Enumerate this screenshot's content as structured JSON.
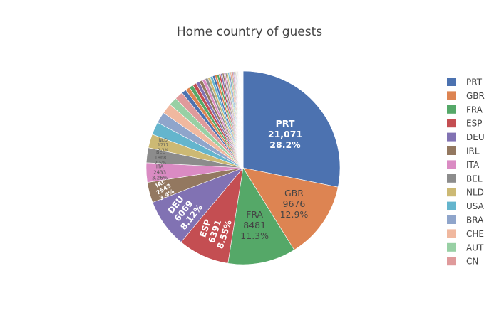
{
  "chart_data": {
    "type": "pie",
    "title": "Home country of guests",
    "categories": [
      "PRT",
      "GBR",
      "FRA",
      "ESP",
      "DEU",
      "IRL",
      "ITA",
      "BEL",
      "NLD",
      "USA",
      "BRA",
      "CHE",
      "AUT",
      "CN"
    ],
    "values": [
      21071,
      9676,
      8481,
      6391,
      6069,
      2543,
      2433,
      1868,
      1717,
      1596,
      1394,
      1302,
      1033,
      1025
    ],
    "labels": [
      {
        "name": "PRT",
        "value": "21,071",
        "percent": "28.2%"
      },
      {
        "name": "GBR",
        "value": "9676",
        "percent": "12.9%"
      },
      {
        "name": "FRA",
        "value": "8481",
        "percent": "11.3%"
      },
      {
        "name": "ESP",
        "value": "6391",
        "percent": "8.55%"
      },
      {
        "name": "DEU",
        "value": "6069",
        "percent": "8.12%"
      },
      {
        "name": "IRL",
        "value": "2543",
        "percent": "3.4%"
      },
      {
        "name": "ITA",
        "value": "2433",
        "percent": "3.26%"
      },
      {
        "name": "BEL",
        "value": "1868",
        "percent": "2.5%"
      },
      {
        "name": "NLD",
        "value": "1717",
        "percent": "2.3%"
      }
    ],
    "other_slices_count": 50,
    "direction": "clockwise",
    "start": "12 o'clock",
    "legend_placement": "right",
    "colors": [
      "#4c72b0",
      "#dd8452",
      "#55a868",
      "#c44e52",
      "#8172b3",
      "#937860",
      "#da8bc3",
      "#8c8c8c",
      "#ccb974",
      "#64b5cd",
      "#8fa5cb",
      "#f0b89f",
      "#98d0a4",
      "#df9a9b"
    ]
  }
}
